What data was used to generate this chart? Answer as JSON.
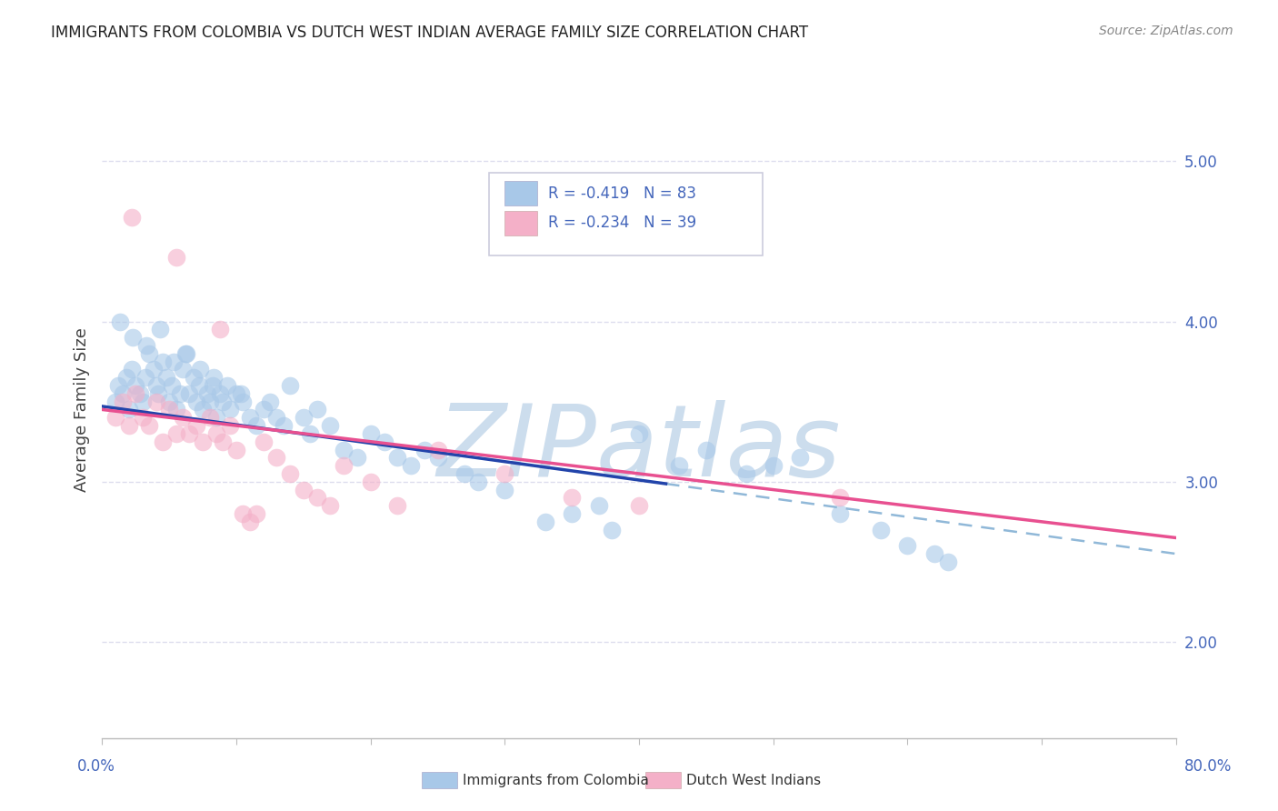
{
  "title": "IMMIGRANTS FROM COLOMBIA VS DUTCH WEST INDIAN AVERAGE FAMILY SIZE CORRELATION CHART",
  "source": "Source: ZipAtlas.com",
  "ylabel": "Average Family Size",
  "xmin": 0.0,
  "xmax": 80.0,
  "ymin": 1.4,
  "ymax": 5.5,
  "yticks_right": [
    2.0,
    3.0,
    4.0,
    5.0
  ],
  "blue_R": -0.419,
  "blue_N": 83,
  "pink_R": -0.234,
  "pink_N": 39,
  "legend_label_blue": "Immigrants from Colombia",
  "legend_label_pink": "Dutch West Indians",
  "blue_color": "#a8c8e8",
  "pink_color": "#f4b0c8",
  "blue_line_color": "#2244aa",
  "pink_line_color": "#e85090",
  "blue_dash_color": "#90b8d8",
  "watermark": "ZIPatlas",
  "watermark_color": "#ccdded",
  "grid_color": "#ddddee",
  "legend_text_color": "#4466bb",
  "pink_text_color": "#e85090",
  "source_color": "#888888",
  "title_color": "#222222",
  "axis_label_color": "#4466bb",
  "spine_color": "#bbbbbb"
}
